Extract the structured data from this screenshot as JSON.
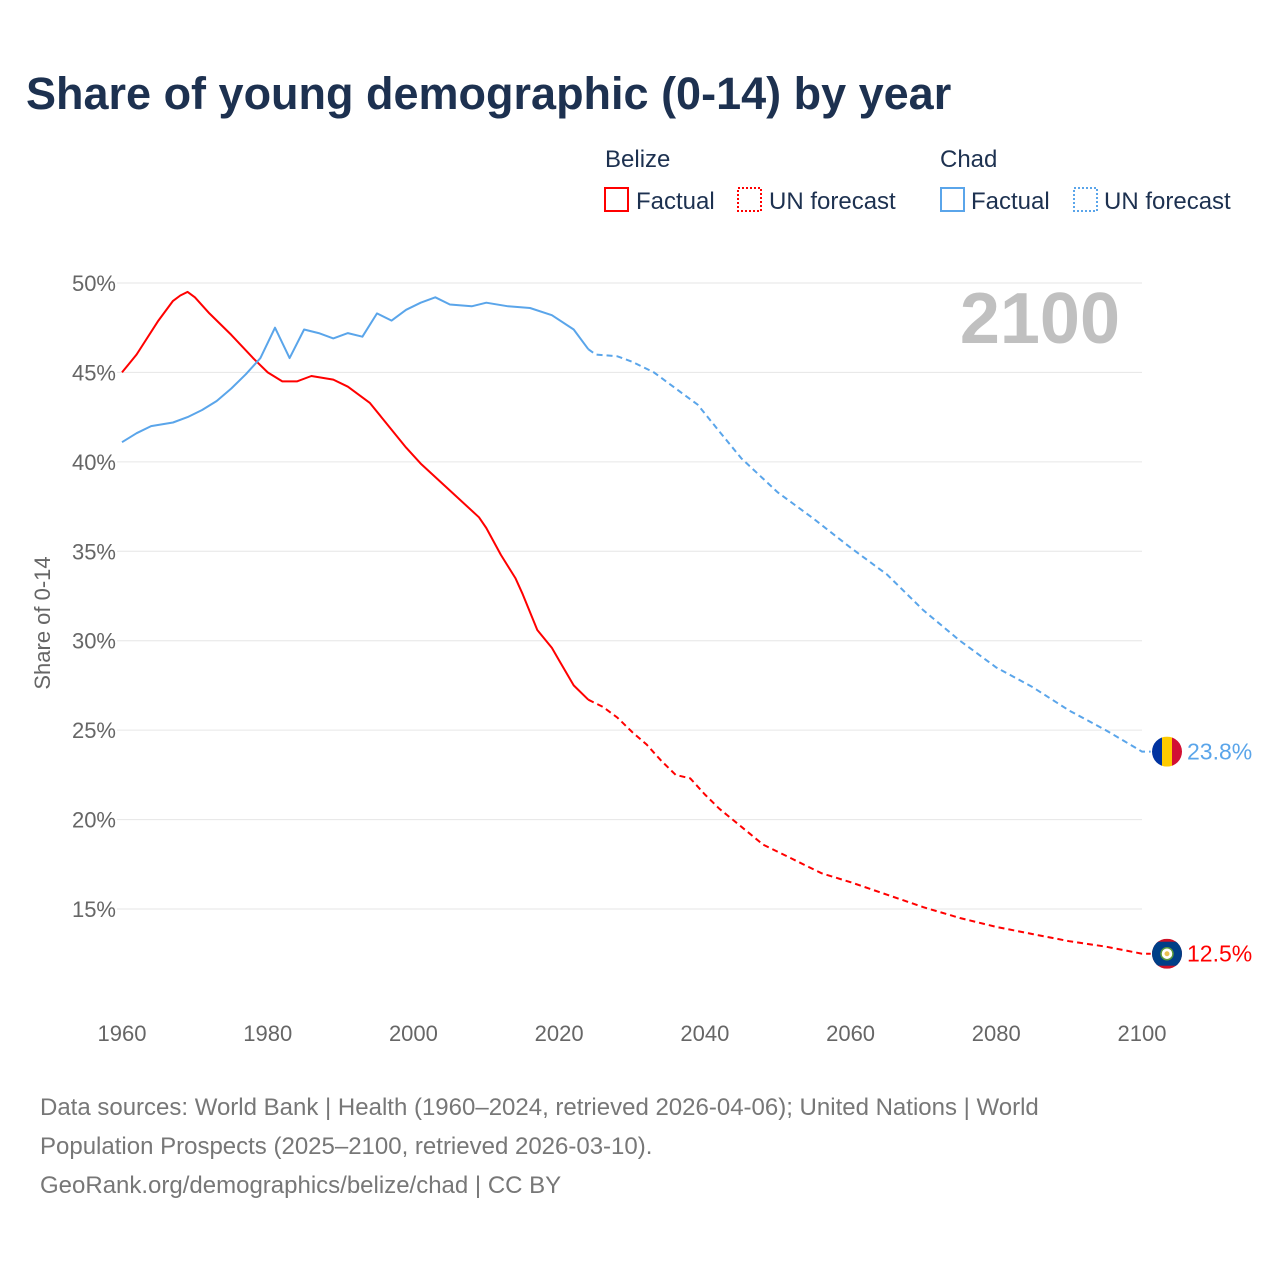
{
  "title": "Share of young demographic (0-14) by year",
  "year_label": "2100",
  "legend": {
    "groups": [
      {
        "country": "Belize",
        "factual": "Factual",
        "forecast": "UN forecast",
        "color": "#ff0000"
      },
      {
        "country": "Chad",
        "factual": "Factual",
        "forecast": "UN forecast",
        "color": "#5aa5ea"
      }
    ]
  },
  "footer": {
    "line1": "Data sources: World Bank | Health (1960–2024, retrieved 2026-04-06); United Nations | World",
    "line2": "Population Prospects (2025–2100, retrieved 2026-03-10).",
    "line3": "GeoRank.org/demographics/belize/chad | CC BY"
  },
  "chart_data": {
    "type": "line",
    "title": "Share of young demographic (0-14) by year",
    "xlabel": "",
    "ylabel": "Share of 0-14",
    "xlim": [
      1960,
      2100
    ],
    "ylim": [
      10,
      50
    ],
    "xticks": [
      "1960",
      "1980",
      "2000",
      "2020",
      "2040",
      "2060",
      "2080",
      "2100"
    ],
    "xtick_values": [
      1960,
      1980,
      2000,
      2020,
      2040,
      2060,
      2080,
      2100
    ],
    "yticks": [
      "15%",
      "20%",
      "25%",
      "30%",
      "35%",
      "40%",
      "45%",
      "50%"
    ],
    "ytick_values": [
      15,
      20,
      25,
      30,
      35,
      40,
      45,
      50
    ],
    "grid": true,
    "legend_position": "top-right",
    "series": [
      {
        "name": "Belize",
        "color": "#ff0000",
        "end_label": "12.5%",
        "factual": [
          [
            1960,
            45.0
          ],
          [
            1962,
            46.0
          ],
          [
            1965,
            47.9
          ],
          [
            1967,
            49.0
          ],
          [
            1968,
            49.3
          ],
          [
            1969,
            49.5
          ],
          [
            1970,
            49.2
          ],
          [
            1972,
            48.3
          ],
          [
            1975,
            47.1
          ],
          [
            1978,
            45.8
          ],
          [
            1980,
            45.0
          ],
          [
            1982,
            44.5
          ],
          [
            1984,
            44.5
          ],
          [
            1986,
            44.8
          ],
          [
            1989,
            44.6
          ],
          [
            1991,
            44.2
          ],
          [
            1994,
            43.3
          ],
          [
            1996,
            42.3
          ],
          [
            1999,
            40.8
          ],
          [
            2001,
            39.9
          ],
          [
            2005,
            38.4
          ],
          [
            2009,
            36.9
          ],
          [
            2010,
            36.3
          ],
          [
            2012,
            34.8
          ],
          [
            2014,
            33.5
          ],
          [
            2015,
            32.6
          ],
          [
            2017,
            30.6
          ],
          [
            2019,
            29.6
          ],
          [
            2020,
            28.9
          ],
          [
            2022,
            27.5
          ],
          [
            2024,
            26.7
          ]
        ],
        "forecast": [
          [
            2024,
            26.7
          ],
          [
            2026,
            26.3
          ],
          [
            2028,
            25.7
          ],
          [
            2030,
            24.9
          ],
          [
            2032,
            24.2
          ],
          [
            2034,
            23.3
          ],
          [
            2036,
            22.5
          ],
          [
            2038,
            22.3
          ],
          [
            2040,
            21.4
          ],
          [
            2042,
            20.6
          ],
          [
            2045,
            19.6
          ],
          [
            2048,
            18.6
          ],
          [
            2052,
            17.8
          ],
          [
            2056,
            17.0
          ],
          [
            2060,
            16.5
          ],
          [
            2065,
            15.8
          ],
          [
            2070,
            15.1
          ],
          [
            2075,
            14.5
          ],
          [
            2080,
            14.0
          ],
          [
            2085,
            13.6
          ],
          [
            2090,
            13.2
          ],
          [
            2095,
            12.9
          ],
          [
            2100,
            12.5
          ]
        ]
      },
      {
        "name": "Chad",
        "color": "#5aa5ea",
        "end_label": "23.8%",
        "factual": [
          [
            1960,
            41.1
          ],
          [
            1962,
            41.6
          ],
          [
            1964,
            42.0
          ],
          [
            1967,
            42.2
          ],
          [
            1969,
            42.5
          ],
          [
            1971,
            42.9
          ],
          [
            1973,
            43.4
          ],
          [
            1975,
            44.1
          ],
          [
            1977,
            44.9
          ],
          [
            1979,
            45.8
          ],
          [
            1981,
            47.5
          ],
          [
            1983,
            45.8
          ],
          [
            1985,
            47.4
          ],
          [
            1987,
            47.2
          ],
          [
            1989,
            46.9
          ],
          [
            1991,
            47.2
          ],
          [
            1993,
            47.0
          ],
          [
            1995,
            48.3
          ],
          [
            1997,
            47.9
          ],
          [
            1999,
            48.5
          ],
          [
            2001,
            48.9
          ],
          [
            2003,
            49.2
          ],
          [
            2005,
            48.8
          ],
          [
            2008,
            48.7
          ],
          [
            2010,
            48.9
          ],
          [
            2013,
            48.7
          ],
          [
            2016,
            48.6
          ],
          [
            2019,
            48.2
          ],
          [
            2022,
            47.4
          ],
          [
            2024,
            46.3
          ]
        ],
        "forecast": [
          [
            2024,
            46.3
          ],
          [
            2025,
            46.0
          ],
          [
            2028,
            45.9
          ],
          [
            2030,
            45.6
          ],
          [
            2033,
            45.0
          ],
          [
            2036,
            44.1
          ],
          [
            2039,
            43.2
          ],
          [
            2042,
            41.7
          ],
          [
            2045,
            40.2
          ],
          [
            2050,
            38.3
          ],
          [
            2055,
            36.8
          ],
          [
            2060,
            35.2
          ],
          [
            2065,
            33.7
          ],
          [
            2070,
            31.7
          ],
          [
            2075,
            30.0
          ],
          [
            2080,
            28.5
          ],
          [
            2085,
            27.4
          ],
          [
            2090,
            26.1
          ],
          [
            2095,
            25.0
          ],
          [
            2100,
            23.8
          ]
        ]
      }
    ]
  }
}
